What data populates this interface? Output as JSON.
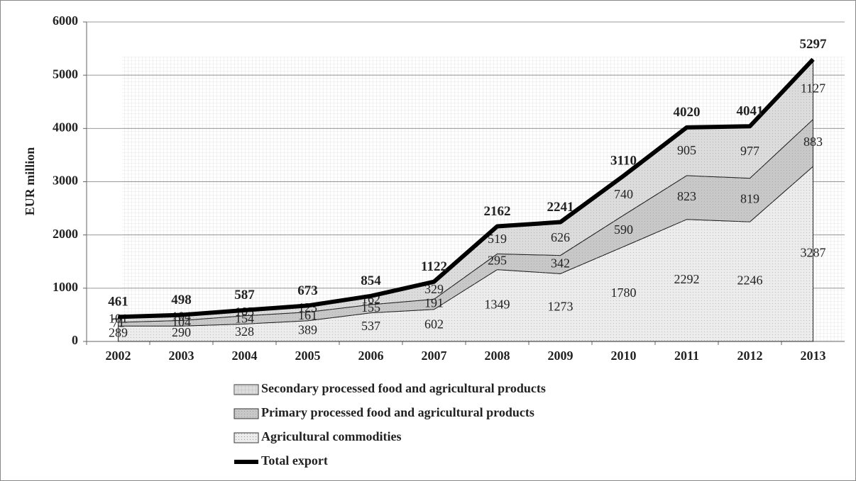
{
  "chart_data": {
    "type": "area",
    "y_label": "EUR million",
    "categories": [
      "2002",
      "2003",
      "2004",
      "2005",
      "2006",
      "2007",
      "2008",
      "2009",
      "2010",
      "2011",
      "2012",
      "2013"
    ],
    "series": [
      {
        "name": "Secondary processed food and agricultural products",
        "color": "#dcdcdc",
        "values": [
          101,
          104,
          105,
          123,
          162,
          329,
          519,
          626,
          740,
          905,
          977,
          1127
        ]
      },
      {
        "name": "Primary processed food and agricultural products",
        "color": "#c8c8c8",
        "values": [
          71,
          104,
          154,
          161,
          155,
          191,
          295,
          342,
          590,
          823,
          819,
          883
        ]
      },
      {
        "name": "Agricultural commodities",
        "color": "#ececec",
        "values": [
          289,
          290,
          328,
          389,
          537,
          602,
          1349,
          1273,
          1780,
          2292,
          2246,
          3287
        ]
      },
      {
        "name": "Total export",
        "color": "#000000",
        "type": "line",
        "values": [
          461,
          498,
          587,
          673,
          854,
          1122,
          2162,
          2241,
          3110,
          4020,
          4041,
          5297
        ]
      }
    ],
    "ylim": [
      0,
      6000
    ],
    "yticks": [
      0,
      1000,
      2000,
      3000,
      4000,
      5000,
      6000
    ],
    "grid": true
  }
}
